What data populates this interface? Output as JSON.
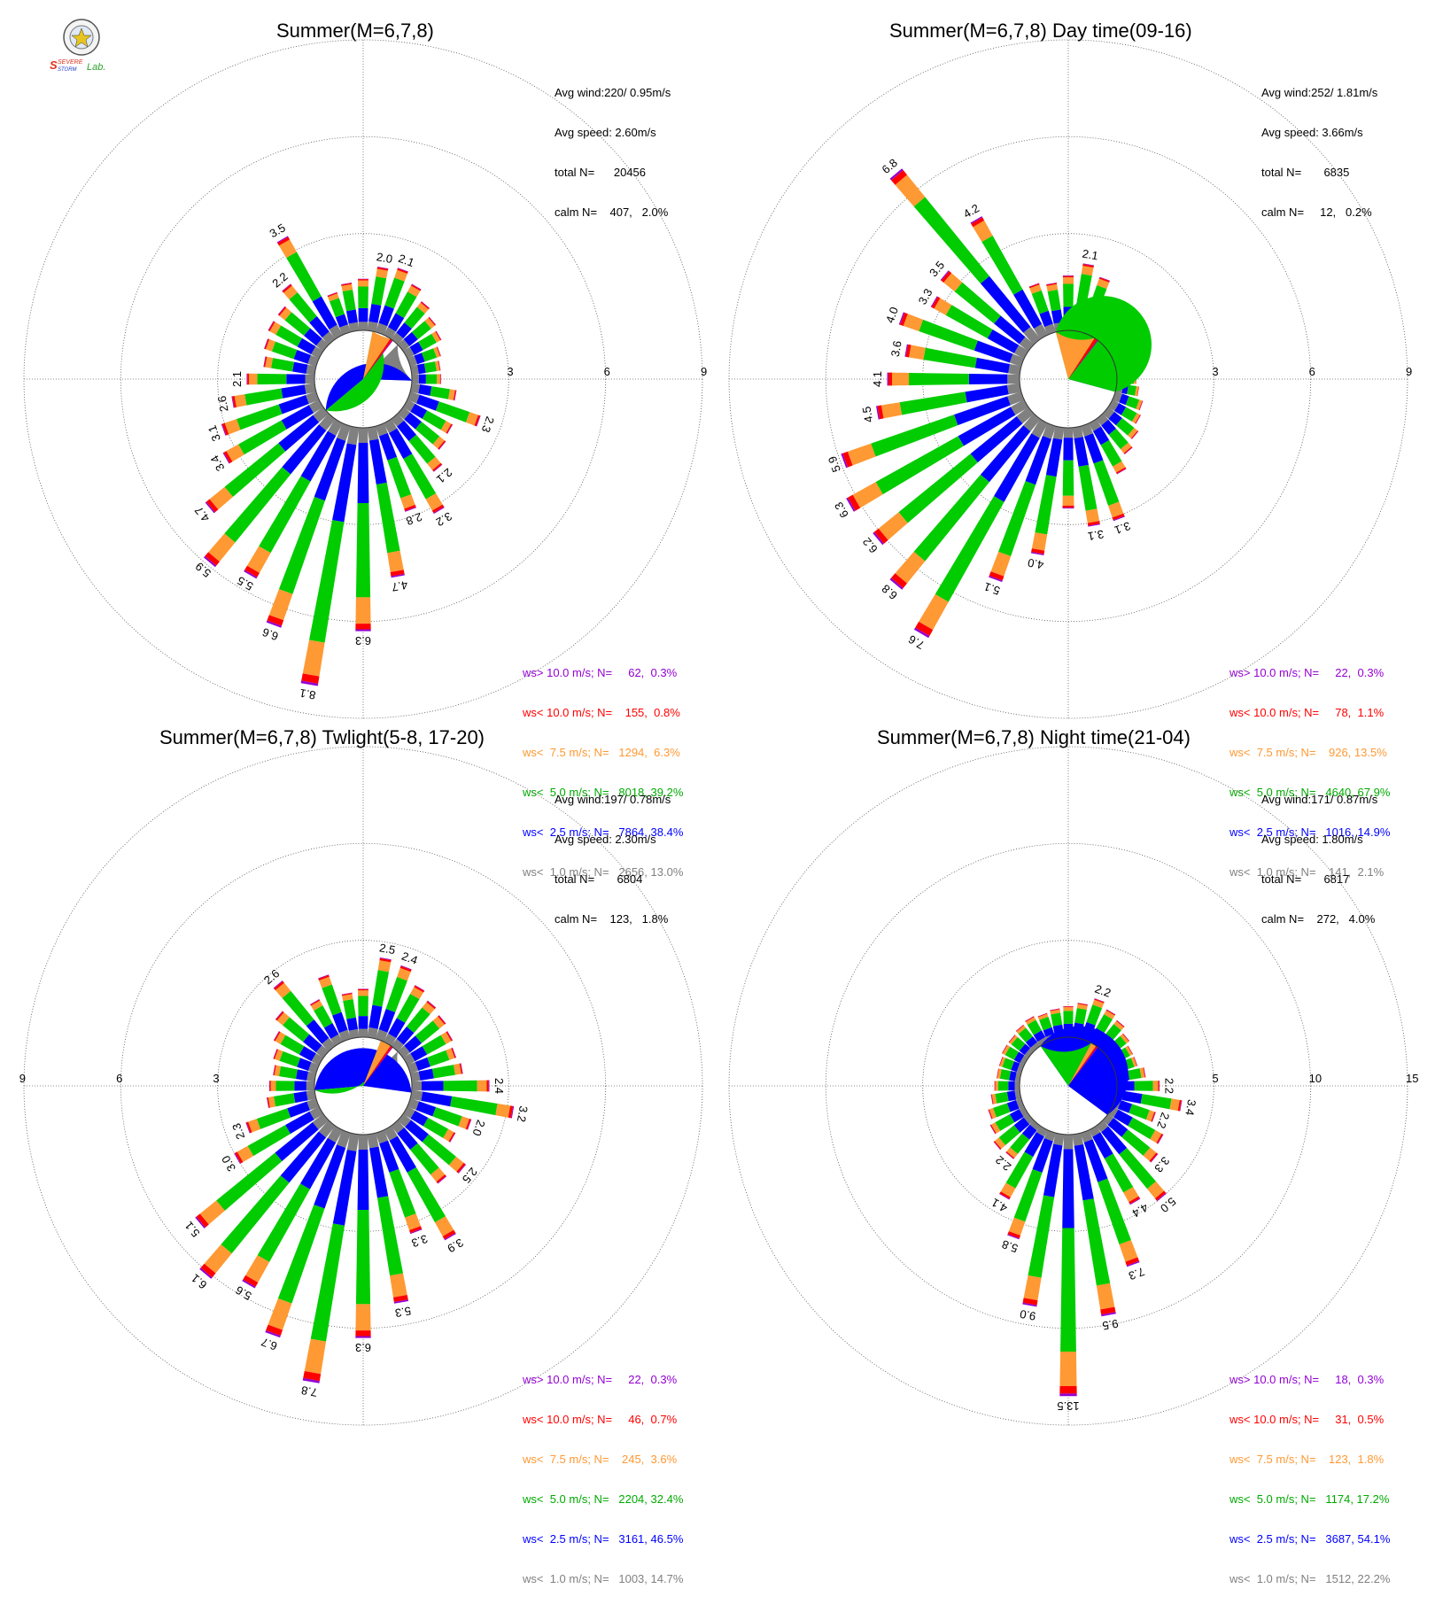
{
  "legend_colors": [
    "#9400d3",
    "#ff0000",
    "#ff9933",
    "#00cc00",
    "#0000ff",
    "#808080"
  ],
  "calm_color": "#ffffff",
  "logo": {
    "top": "SEVERE",
    "bottom": "STORM",
    "lab": "Lab."
  },
  "chart_data": [
    {
      "type": "windrose",
      "title": "Summer(M=6,7,8)",
      "ring_labels": [
        "3",
        "6",
        "9"
      ],
      "max_value": 9,
      "stats": {
        "avg_wind": "Avg wind:220/ 0.95m/s",
        "avg_speed": "Avg speed: 2.60m/s",
        "total": "total N=      20456",
        "calm": "calm N=    407,   2.0%"
      },
      "legend": [
        "ws> 10.0 m/s; N=     62,  0.3%",
        "ws< 10.0 m/s; N=    155,  0.8%",
        "ws<  7.5 m/s; N=   1294,  6.3%",
        "ws<  5.0 m/s; N=   8018, 39.2%",
        "ws<  2.5 m/s; N=   7864, 38.4%",
        "ws<  1.0 m/s; N=   2656, 13.0%"
      ],
      "pie": [
        13.0,
        38.4,
        39.2,
        6.3,
        0.8,
        0.3
      ],
      "directions": [
        {
          "d": 0,
          "t": 1.6
        },
        {
          "d": 10,
          "t": 2.0,
          "label": "2.0"
        },
        {
          "d": 20,
          "t": 2.1,
          "label": "2.1"
        },
        {
          "d": 30,
          "t": 1.8
        },
        {
          "d": 40,
          "t": 1.5
        },
        {
          "d": 50,
          "t": 1.3
        },
        {
          "d": 60,
          "t": 1.2
        },
        {
          "d": 70,
          "t": 1.0
        },
        {
          "d": 80,
          "t": 0.9
        },
        {
          "d": 90,
          "t": 0.9
        },
        {
          "d": 100,
          "t": 1.4
        },
        {
          "d": 110,
          "t": 2.3,
          "label": "2.3"
        },
        {
          "d": 120,
          "t": 1.6
        },
        {
          "d": 130,
          "t": 1.7
        },
        {
          "d": 140,
          "t": 2.1,
          "label": "2.1"
        },
        {
          "d": 150,
          "t": 3.2,
          "label": "3.2"
        },
        {
          "d": 160,
          "t": 2.8,
          "label": "2.8"
        },
        {
          "d": 170,
          "t": 4.7,
          "label": "4.7"
        },
        {
          "d": 180,
          "t": 6.3,
          "label": "6.3"
        },
        {
          "d": 190,
          "t": 8.1,
          "label": "8.1"
        },
        {
          "d": 200,
          "t": 6.6,
          "label": "6.6"
        },
        {
          "d": 210,
          "t": 5.5,
          "label": "5.5"
        },
        {
          "d": 220,
          "t": 5.9,
          "label": "5.9"
        },
        {
          "d": 230,
          "t": 4.7,
          "label": "4.7"
        },
        {
          "d": 240,
          "t": 3.4,
          "label": "3.4"
        },
        {
          "d": 250,
          "t": 3.1,
          "label": "3.1"
        },
        {
          "d": 260,
          "t": 2.6,
          "label": "2.6"
        },
        {
          "d": 270,
          "t": 2.1,
          "label": "2.1"
        },
        {
          "d": 280,
          "t": 1.6
        },
        {
          "d": 290,
          "t": 1.7
        },
        {
          "d": 300,
          "t": 1.8
        },
        {
          "d": 310,
          "t": 1.8
        },
        {
          "d": 320,
          "t": 2.2,
          "label": "2.2"
        },
        {
          "d": 330,
          "t": 3.5,
          "label": "3.5"
        },
        {
          "d": 340,
          "t": 1.3
        },
        {
          "d": 350,
          "t": 1.5
        }
      ]
    },
    {
      "type": "windrose",
      "title": "Summer(M=6,7,8) Day time(09-16)",
      "ring_labels": [
        "3",
        "6",
        "9"
      ],
      "max_value": 9,
      "stats": {
        "avg_wind": "Avg wind:252/ 1.81m/s",
        "avg_speed": "Avg speed: 3.66m/s",
        "total": "total N=       6835",
        "calm": "calm N=     12,   0.2%"
      },
      "legend": [
        "ws> 10.0 m/s; N=     22,  0.3%",
        "ws< 10.0 m/s; N=     78,  1.1%",
        "ws<  7.5 m/s; N=    926, 13.5%",
        "ws<  5.0 m/s; N=   4640, 67.9%",
        "ws<  2.5 m/s; N=   1016, 14.9%",
        "ws<  1.0 m/s; N=    141,  2.1%"
      ],
      "pie": [
        2.1,
        14.9,
        67.9,
        13.5,
        1.1,
        0.3
      ],
      "directions": [
        {
          "d": 0,
          "t": 1.7
        },
        {
          "d": 10,
          "t": 2.1,
          "label": "2.1"
        },
        {
          "d": 20,
          "t": 1.8
        },
        {
          "d": 30,
          "t": 1.3
        },
        {
          "d": 40,
          "t": 1.2
        },
        {
          "d": 50,
          "t": 1.0
        },
        {
          "d": 60,
          "t": 0.9
        },
        {
          "d": 70,
          "t": 0.7
        },
        {
          "d": 80,
          "t": 0.6
        },
        {
          "d": 90,
          "t": 0.6
        },
        {
          "d": 100,
          "t": 0.7
        },
        {
          "d": 110,
          "t": 0.9
        },
        {
          "d": 120,
          "t": 1.0
        },
        {
          "d": 130,
          "t": 1.2
        },
        {
          "d": 140,
          "t": 1.4
        },
        {
          "d": 150,
          "t": 1.8
        },
        {
          "d": 160,
          "t": 3.1,
          "label": "3.1"
        },
        {
          "d": 170,
          "t": 3.1,
          "label": "3.1"
        },
        {
          "d": 180,
          "t": 2.5
        },
        {
          "d": 190,
          "t": 4.0,
          "label": "4.0"
        },
        {
          "d": 200,
          "t": 5.1,
          "label": "5.1"
        },
        {
          "d": 210,
          "t": 7.6,
          "label": "7.6"
        },
        {
          "d": 220,
          "t": 6.8,
          "label": "6.8"
        },
        {
          "d": 230,
          "t": 6.2,
          "label": "6.2"
        },
        {
          "d": 240,
          "t": 6.3,
          "label": "6.3"
        },
        {
          "d": 250,
          "t": 5.9,
          "label": "5.9"
        },
        {
          "d": 260,
          "t": 4.5,
          "label": "4.5"
        },
        {
          "d": 270,
          "t": 4.1,
          "label": "4.1"
        },
        {
          "d": 280,
          "t": 3.6,
          "label": "3.6"
        },
        {
          "d": 290,
          "t": 4.0,
          "label": "4.0"
        },
        {
          "d": 300,
          "t": 3.3,
          "label": "3.3"
        },
        {
          "d": 310,
          "t": 3.5,
          "label": "3.5"
        },
        {
          "d": 320,
          "t": 6.8,
          "label": "6.8"
        },
        {
          "d": 330,
          "t": 4.2,
          "label": "4.2"
        },
        {
          "d": 340,
          "t": 1.6
        },
        {
          "d": 350,
          "t": 1.5
        }
      ]
    },
    {
      "type": "windrose",
      "title": "Summer(M=6,7,8) Twlight(5-8, 17-20)",
      "ring_labels": [
        "3",
        "6",
        "9"
      ],
      "max_value": 9,
      "stats": {
        "avg_wind": "Avg wind:197/ 0.78m/s",
        "avg_speed": "Avg speed: 2.30m/s",
        "total": "total N=       6804",
        "calm": "calm N=    123,   1.8%"
      },
      "legend": [
        "ws> 10.0 m/s; N=     22,  0.3%",
        "ws< 10.0 m/s; N=     46,  0.7%",
        "ws<  7.5 m/s; N=    245,  3.6%",
        "ws<  5.0 m/s; N=   2204, 32.4%",
        "ws<  2.5 m/s; N=   3161, 46.5%",
        "ws<  1.0 m/s; N=   1003, 14.7%"
      ],
      "pie": [
        14.7,
        46.5,
        32.4,
        3.6,
        0.7,
        0.3
      ],
      "directions": [
        {
          "d": 0,
          "t": 1.5
        },
        {
          "d": 10,
          "t": 2.5,
          "label": "2.5"
        },
        {
          "d": 20,
          "t": 2.4,
          "label": "2.4"
        },
        {
          "d": 30,
          "t": 2.0
        },
        {
          "d": 40,
          "t": 1.8
        },
        {
          "d": 50,
          "t": 1.7
        },
        {
          "d": 60,
          "t": 1.6
        },
        {
          "d": 70,
          "t": 1.5
        },
        {
          "d": 80,
          "t": 1.6
        },
        {
          "d": 90,
          "t": 2.4,
          "label": "2.4"
        },
        {
          "d": 100,
          "t": 3.2,
          "label": "3.2"
        },
        {
          "d": 110,
          "t": 2.0,
          "label": "2.0"
        },
        {
          "d": 120,
          "t": 1.7
        },
        {
          "d": 130,
          "t": 2.5,
          "label": "2.5"
        },
        {
          "d": 140,
          "t": 2.3
        },
        {
          "d": 150,
          "t": 3.9,
          "label": "3.9"
        },
        {
          "d": 160,
          "t": 3.3,
          "label": "3.3"
        },
        {
          "d": 170,
          "t": 5.3,
          "label": "5.3"
        },
        {
          "d": 180,
          "t": 6.3,
          "label": "6.3"
        },
        {
          "d": 190,
          "t": 7.8,
          "label": "7.8"
        },
        {
          "d": 200,
          "t": 6.7,
          "label": "6.7"
        },
        {
          "d": 210,
          "t": 5.6,
          "label": "5.6"
        },
        {
          "d": 220,
          "t": 6.1,
          "label": "6.1"
        },
        {
          "d": 230,
          "t": 5.1,
          "label": "5.1"
        },
        {
          "d": 240,
          "t": 3.0,
          "label": "3.0"
        },
        {
          "d": 250,
          "t": 2.3,
          "label": "2.3"
        },
        {
          "d": 260,
          "t": 1.5
        },
        {
          "d": 270,
          "t": 1.4
        },
        {
          "d": 280,
          "t": 1.3
        },
        {
          "d": 290,
          "t": 1.4
        },
        {
          "d": 300,
          "t": 1.6
        },
        {
          "d": 310,
          "t": 1.9
        },
        {
          "d": 320,
          "t": 2.6,
          "label": "2.6"
        },
        {
          "d": 330,
          "t": 1.5
        },
        {
          "d": 340,
          "t": 2.1
        },
        {
          "d": 350,
          "t": 1.4
        }
      ]
    },
    {
      "type": "windrose",
      "title": "Summer(M=6,7,8) Night time(21-04)",
      "ring_labels": [
        "5",
        "10",
        "15"
      ],
      "max_value": 15,
      "stats": {
        "avg_wind": "Avg wind:171/ 0.87m/s",
        "avg_speed": "Avg speed: 1.80m/s",
        "total": "total N=       6817",
        "calm": "calm N=    272,   4.0%"
      },
      "legend": [
        "ws> 10.0 m/s; N=     18,  0.3%",
        "ws< 10.0 m/s; N=     31,  0.5%",
        "ws<  7.5 m/s; N=    123,  1.8%",
        "ws<  5.0 m/s; N=   1174, 17.2%",
        "ws<  2.5 m/s; N=   3687, 54.1%",
        "ws<  1.0 m/s; N=   1512, 22.2%"
      ],
      "pie": [
        22.2,
        54.1,
        17.2,
        1.8,
        0.5,
        0.3
      ],
      "directions": [
        {
          "d": 0,
          "t": 1.6
        },
        {
          "d": 10,
          "t": 1.8
        },
        {
          "d": 20,
          "t": 2.2,
          "label": "2.2"
        },
        {
          "d": 30,
          "t": 1.9
        },
        {
          "d": 40,
          "t": 1.7
        },
        {
          "d": 50,
          "t": 1.4
        },
        {
          "d": 60,
          "t": 1.2
        },
        {
          "d": 70,
          "t": 1.2
        },
        {
          "d": 80,
          "t": 1.5
        },
        {
          "d": 90,
          "t": 2.2,
          "label": "2.2"
        },
        {
          "d": 100,
          "t": 3.4,
          "label": "3.4"
        },
        {
          "d": 110,
          "t": 2.2,
          "label": "2.2"
        },
        {
          "d": 120,
          "t": 3.0
        },
        {
          "d": 130,
          "t": 3.3,
          "label": "3.3"
        },
        {
          "d": 140,
          "t": 5.0,
          "label": "5.0"
        },
        {
          "d": 150,
          "t": 4.4,
          "label": "4.4"
        },
        {
          "d": 160,
          "t": 7.3,
          "label": "7.3"
        },
        {
          "d": 170,
          "t": 9.5,
          "label": "9.5"
        },
        {
          "d": 180,
          "t": 13.5,
          "label": "13.5"
        },
        {
          "d": 190,
          "t": 9.0,
          "label": "9.0"
        },
        {
          "d": 200,
          "t": 5.8,
          "label": "5.8"
        },
        {
          "d": 210,
          "t": 4.1,
          "label": "4.1"
        },
        {
          "d": 220,
          "t": 2.2,
          "label": "2.2"
        },
        {
          "d": 230,
          "t": 2.3
        },
        {
          "d": 240,
          "t": 2.0
        },
        {
          "d": 250,
          "t": 1.8
        },
        {
          "d": 260,
          "t": 1.5
        },
        {
          "d": 270,
          "t": 1.3
        },
        {
          "d": 280,
          "t": 1.2
        },
        {
          "d": 290,
          "t": 1.2
        },
        {
          "d": 300,
          "t": 1.3
        },
        {
          "d": 310,
          "t": 1.3
        },
        {
          "d": 320,
          "t": 1.4
        },
        {
          "d": 330,
          "t": 1.5
        },
        {
          "d": 340,
          "t": 1.4
        },
        {
          "d": 350,
          "t": 1.5
        }
      ]
    }
  ]
}
